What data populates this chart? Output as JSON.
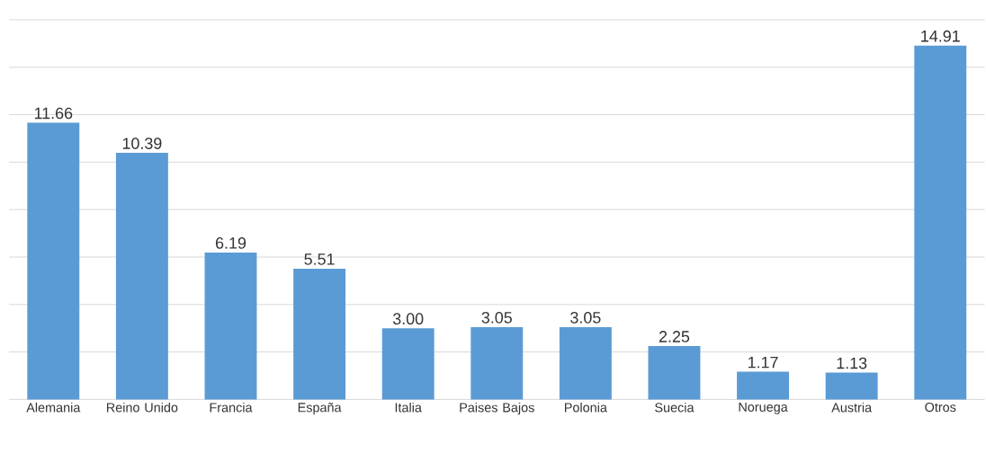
{
  "chart_data": {
    "type": "bar",
    "categories": [
      "Alemania",
      "Reino Unido",
      "Francia",
      "España",
      "Italia",
      "Paises Bajos",
      "Polonia",
      "Suecia",
      "Noruega",
      "Austria",
      "Otros"
    ],
    "values": [
      11.66,
      10.39,
      6.19,
      5.51,
      3.0,
      3.05,
      3.05,
      2.25,
      1.17,
      1.13,
      14.91
    ],
    "value_labels": [
      "11.66",
      "10.39",
      "6.19",
      "5.51",
      "3.00",
      "3.05",
      "3.05",
      "2.25",
      "1.17",
      "1.13",
      "14.91"
    ],
    "color": "#5b9bd5",
    "ylim": [
      0,
      16
    ],
    "yticks": [
      {
        "value": 0,
        "label": null
      },
      {
        "value": 2,
        "label": null
      },
      {
        "value": 4,
        "label": null
      },
      {
        "value": 6,
        "label": null
      },
      {
        "value": 8,
        "label": null
      },
      {
        "value": 10,
        "label": null
      },
      {
        "value": 12,
        "label": null
      },
      {
        "value": 14,
        "label": null
      },
      {
        "value": 16,
        "label": null
      }
    ],
    "grid": "y",
    "tick_labels": "x"
  }
}
